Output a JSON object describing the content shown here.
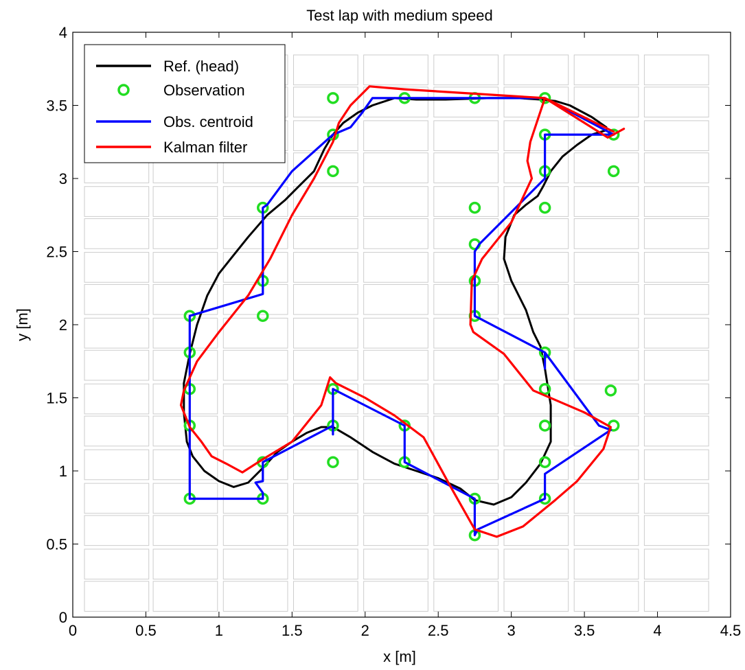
{
  "chart_data": {
    "type": "line",
    "title": "Test lap with medium speed",
    "xlabel": "x [m]",
    "ylabel": "y [m]",
    "xlim": [
      0,
      4.5
    ],
    "ylim": [
      0,
      4
    ],
    "xticks": [
      "0",
      "0.5",
      "1",
      "1.5",
      "2",
      "2.5",
      "3",
      "3.5",
      "4",
      "4.5"
    ],
    "yticks": [
      "0",
      "0.5",
      "1",
      "1.5",
      "2",
      "2.5",
      "3",
      "3.5",
      "4"
    ],
    "grid": false,
    "legend_position": "top-left",
    "legend": [
      "Ref. (head)",
      "Observation",
      "Obs. centroid",
      "Kalman filter"
    ],
    "colors": {
      "ref": "#000000",
      "observation": "#22dd22",
      "centroid": "#0000ff",
      "kalman": "#ff0000",
      "floor_tiles": "#cccccc"
    },
    "series": [
      {
        "name": "Ref. (head)",
        "style": "line",
        "x": [
          3.65,
          3.55,
          3.4,
          3.3,
          3.2,
          3.05,
          2.85,
          2.55,
          2.35,
          2.2,
          2.05,
          1.95,
          1.85,
          1.78,
          1.72,
          1.65,
          1.55,
          1.45,
          1.33,
          1.2,
          1.08,
          1.0,
          0.92,
          0.85,
          0.8,
          0.76,
          0.76,
          0.78,
          0.82,
          0.9,
          1.0,
          1.1,
          1.2,
          1.3,
          1.4,
          1.5,
          1.6,
          1.7,
          1.78,
          1.9,
          2.05,
          2.2,
          2.35,
          2.5,
          2.65,
          2.75,
          2.88,
          3.0,
          3.1,
          3.2,
          3.27,
          3.27,
          3.23,
          3.2,
          3.15,
          3.1,
          3.0,
          2.95,
          2.96,
          3.02,
          3.1,
          3.18,
          3.22,
          3.27,
          3.35,
          3.45,
          3.55,
          3.65
        ],
        "y": [
          3.35,
          3.42,
          3.5,
          3.53,
          3.54,
          3.55,
          3.55,
          3.54,
          3.54,
          3.55,
          3.5,
          3.45,
          3.38,
          3.3,
          3.2,
          3.05,
          2.95,
          2.85,
          2.75,
          2.6,
          2.45,
          2.35,
          2.2,
          2.0,
          1.8,
          1.6,
          1.4,
          1.2,
          1.1,
          1.0,
          0.93,
          0.89,
          0.92,
          1.02,
          1.13,
          1.2,
          1.26,
          1.3,
          1.3,
          1.23,
          1.13,
          1.05,
          1.0,
          0.95,
          0.88,
          0.8,
          0.77,
          0.82,
          0.92,
          1.05,
          1.2,
          1.45,
          1.7,
          1.85,
          1.95,
          2.1,
          2.3,
          2.45,
          2.6,
          2.75,
          2.82,
          2.88,
          2.95,
          3.05,
          3.15,
          3.23,
          3.3,
          3.33
        ]
      },
      {
        "name": "Observation",
        "style": "marker",
        "x": [
          1.78,
          2.27,
          2.75,
          3.23,
          1.78,
          3.23,
          3.7,
          1.78,
          3.23,
          3.7,
          1.3,
          2.75,
          3.23,
          2.75,
          1.3,
          2.75,
          0.8,
          1.3,
          2.75,
          0.8,
          3.23,
          0.8,
          1.78,
          3.23,
          3.68,
          0.8,
          1.78,
          2.27,
          3.23,
          3.7,
          1.3,
          1.78,
          2.27,
          3.23,
          0.8,
          1.3,
          2.75,
          3.23,
          2.75
        ],
        "y": [
          3.55,
          3.55,
          3.55,
          3.55,
          3.3,
          3.3,
          3.3,
          3.05,
          3.05,
          3.05,
          2.8,
          2.8,
          2.8,
          2.55,
          2.3,
          2.3,
          2.06,
          2.06,
          2.06,
          1.81,
          1.81,
          1.56,
          1.56,
          1.56,
          1.55,
          1.31,
          1.31,
          1.31,
          1.31,
          1.31,
          1.06,
          1.06,
          1.06,
          1.06,
          0.81,
          0.81,
          0.81,
          0.81,
          0.56
        ]
      },
      {
        "name": "Obs. centroid",
        "style": "line",
        "x": [
          3.7,
          3.23,
          3.23,
          3.23,
          3.2,
          2.78,
          2.75,
          2.75,
          2.75,
          3.23,
          3.23,
          3.23,
          3.6,
          3.68,
          3.23,
          3.23,
          3.23,
          2.77,
          2.75,
          2.75,
          2.27,
          2.27,
          2.27,
          1.78,
          1.78,
          1.78,
          1.3,
          1.3,
          1.25,
          1.3,
          1.3,
          0.8,
          0.8,
          0.8,
          0.8,
          0.8,
          0.8,
          1.3,
          1.3,
          1.3,
          1.33,
          1.5,
          1.78,
          1.78,
          1.9,
          1.98,
          2.05,
          2.2,
          2.45,
          2.75,
          2.75,
          3.0,
          3.23,
          3.7
        ],
        "y": [
          3.3,
          3.3,
          3.3,
          3.0,
          2.97,
          2.55,
          2.5,
          2.3,
          2.06,
          1.81,
          1.7,
          1.81,
          1.31,
          1.28,
          0.98,
          0.81,
          0.81,
          0.6,
          0.56,
          0.81,
          1.06,
          1.31,
          1.31,
          1.56,
          1.25,
          1.31,
          1.06,
          0.93,
          0.92,
          0.85,
          0.81,
          0.81,
          1.06,
          1.31,
          1.56,
          1.81,
          2.06,
          2.21,
          2.8,
          2.8,
          2.82,
          3.05,
          3.3,
          3.3,
          3.35,
          3.45,
          3.55,
          3.55,
          3.55,
          3.55,
          3.55,
          3.55,
          3.55,
          3.3
        ]
      },
      {
        "name": "Kalman filter",
        "style": "line",
        "x": [
          3.77,
          3.66,
          3.23,
          3.13,
          3.11,
          3.14,
          3.0,
          2.8,
          2.73,
          2.72,
          2.74,
          2.95,
          3.15,
          3.5,
          3.68,
          3.63,
          3.45,
          3.3,
          3.08,
          2.9,
          2.75,
          2.58,
          2.4,
          2.2,
          2.0,
          1.8,
          1.76,
          1.7,
          1.5,
          1.3,
          1.16,
          1.05,
          0.95,
          0.88,
          0.8,
          0.74,
          0.76,
          0.85,
          1.0,
          1.2,
          1.35,
          1.5,
          1.65,
          1.78,
          1.82,
          1.9,
          2.03,
          2.27,
          2.75,
          3.23,
          3.7
        ],
        "y": [
          3.34,
          3.28,
          3.55,
          3.25,
          3.12,
          3.0,
          2.7,
          2.45,
          2.3,
          2.0,
          1.95,
          1.8,
          1.55,
          1.4,
          1.3,
          1.15,
          0.93,
          0.8,
          0.62,
          0.55,
          0.6,
          0.9,
          1.23,
          1.38,
          1.5,
          1.6,
          1.64,
          1.45,
          1.2,
          1.08,
          0.99,
          1.05,
          1.1,
          1.2,
          1.3,
          1.45,
          1.55,
          1.75,
          1.95,
          2.2,
          2.45,
          2.75,
          3.0,
          3.25,
          3.38,
          3.5,
          3.63,
          3.61,
          3.58,
          3.55,
          3.32
        ]
      }
    ]
  }
}
